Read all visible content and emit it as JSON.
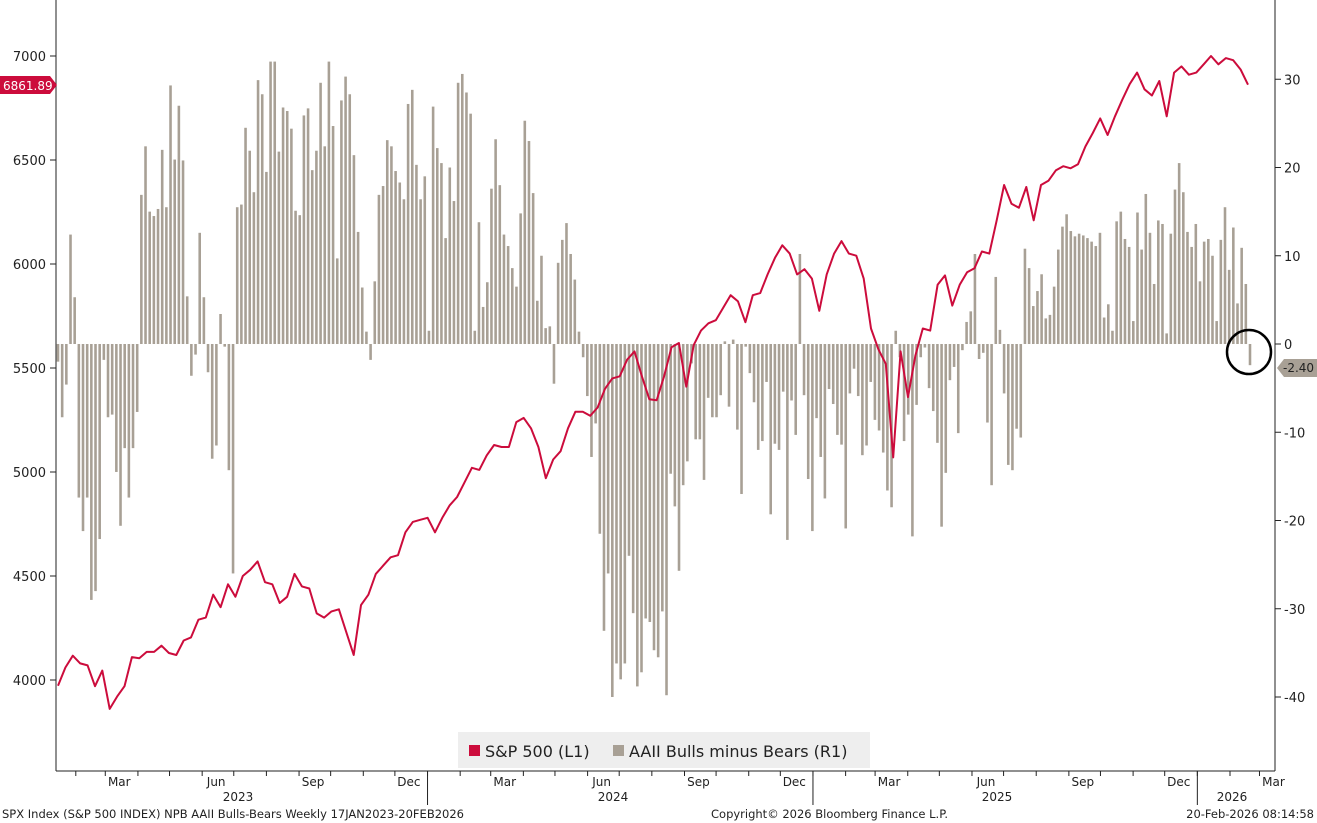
{
  "colors": {
    "spx": "#cc0c3c",
    "aaii": "#a8a095",
    "axis": "#222222",
    "badge_aaii": "#a8a095"
  },
  "legend": {
    "spx_label": "S&P 500 (L1)",
    "aaii_label": "AAII Bulls minus Bears (R1)"
  },
  "current": {
    "spx_value": "6861.89",
    "aaii_value": "-2.40"
  },
  "footer": {
    "left": "SPX Index (S&P 500 INDEX) NPB AAII Bulls-Bears Weekly 17JAN2023-20FEB2026",
    "center": "Copyright© 2026 Bloomberg Finance L.P.",
    "right": "20-Feb-2026 08:14:58"
  },
  "chart_data": {
    "type": "line+bar",
    "title": "",
    "x_range": [
      "2023-01-17",
      "2026-02-20"
    ],
    "month_ticks": [
      "Mar",
      "Jun",
      "Sep",
      "Dec",
      "Mar",
      "Jun",
      "Sep",
      "Dec",
      "Mar",
      "Jun",
      "Sep",
      "Dec",
      "Mar"
    ],
    "year_ticks": [
      "2023",
      "2024",
      "2025",
      "2026"
    ],
    "left_axis": {
      "ylim": [
        3700,
        7240
      ],
      "ticks": [
        4000,
        4500,
        5000,
        5500,
        6000,
        6500,
        7000
      ]
    },
    "right_axis": {
      "ylim": [
        -48,
        39
      ],
      "ticks": [
        -40,
        -30,
        -20,
        -10,
        0,
        10,
        20,
        30
      ]
    },
    "series": [
      {
        "name": "S&P 500 (L1)",
        "kind": "line",
        "axis": "left",
        "values": [
          3972,
          4060,
          4117,
          4080,
          4070,
          3970,
          4045,
          3861,
          3920,
          3970,
          4110,
          4105,
          4135,
          4135,
          4165,
          4130,
          4120,
          4190,
          4205,
          4290,
          4300,
          4410,
          4350,
          4460,
          4400,
          4500,
          4530,
          4570,
          4470,
          4460,
          4370,
          4400,
          4510,
          4450,
          4440,
          4320,
          4300,
          4330,
          4340,
          4230,
          4120,
          4360,
          4410,
          4510,
          4550,
          4590,
          4600,
          4710,
          4760,
          4770,
          4780,
          4710,
          4780,
          4840,
          4880,
          4950,
          5020,
          5010,
          5080,
          5130,
          5120,
          5120,
          5240,
          5260,
          5210,
          5120,
          4970,
          5060,
          5100,
          5210,
          5290,
          5290,
          5270,
          5310,
          5400,
          5450,
          5460,
          5540,
          5580,
          5460,
          5350,
          5345,
          5460,
          5600,
          5620,
          5410,
          5610,
          5680,
          5715,
          5730,
          5790,
          5850,
          5820,
          5720,
          5850,
          5860,
          5950,
          6030,
          6090,
          6050,
          5950,
          5975,
          5930,
          5775,
          5950,
          6050,
          6110,
          6050,
          6040,
          5930,
          5690,
          5590,
          5520,
          5070,
          5580,
          5360,
          5560,
          5690,
          5680,
          5900,
          5945,
          5800,
          5900,
          5960,
          5980,
          6060,
          6050,
          6210,
          6380,
          6290,
          6270,
          6370,
          6210,
          6380,
          6400,
          6450,
          6470,
          6460,
          6480,
          6565,
          6630,
          6700,
          6620,
          6710,
          6790,
          6865,
          6920,
          6840,
          6810,
          6880,
          6710,
          6920,
          6950,
          6910,
          6920,
          6960,
          7000,
          6960,
          6990,
          6980,
          6935,
          6862
        ]
      },
      {
        "name": "AAII Bulls minus Bears (R1)",
        "kind": "bar",
        "axis": "right",
        "values": [
          -2.0,
          -8.3,
          -4.6,
          12.4,
          5.3,
          -17.4,
          -21.2,
          -17.4,
          -29.0,
          -28.0,
          -22.1,
          -1.8,
          -8.3,
          -8.0,
          -14.5,
          -20.6,
          -11.8,
          -17.4,
          -11.8,
          -7.7,
          16.9,
          22.4,
          15.0,
          14.5,
          15.3,
          22.0,
          15.5,
          29.3,
          20.9,
          27.0,
          20.8,
          5.4,
          -3.6,
          -1.2,
          12.6,
          5.3,
          -3.2,
          -13.0,
          -11.5,
          3.4,
          -0.3,
          -14.3,
          -26.0,
          15.5,
          15.8,
          24.5,
          21.9,
          17.2,
          29.9,
          28.3,
          19.5,
          32.0,
          32.0,
          21.8,
          26.8,
          26.4,
          24.4,
          15.1,
          14.6,
          25.9,
          26.7,
          19.7,
          21.9,
          29.6,
          22.4,
          32.0,
          24.7,
          9.7,
          27.6,
          30.3,
          28.3,
          21.4,
          12.7,
          6.4,
          1.4,
          -1.8,
          7.1,
          16.9,
          17.9,
          23.1,
          22.4,
          19.6,
          18.3,
          16.4,
          27.2,
          28.8,
          20.3,
          16.4,
          19.0,
          1.5,
          26.9,
          22.2,
          20.5,
          12.0,
          20.0,
          16.2,
          29.6,
          30.6,
          28.5,
          26.1,
          1.5,
          13.8,
          4.2,
          7.0,
          17.6,
          23.2,
          18.0,
          12.4,
          11.1,
          8.6,
          6.5,
          14.8,
          25.3,
          23.0,
          17.1,
          4.9,
          10.0,
          1.8,
          2.0,
          -4.5,
          9.2,
          11.8,
          13.7,
          10.2,
          7.3,
          1.4,
          -1.5,
          -5.9,
          -12.8,
          -9.0,
          -21.5,
          -32.5,
          -26.0,
          -40.0,
          -36.2,
          -38.0,
          -36.2,
          -24.0,
          -30.5,
          -38.8,
          -37.2,
          -31.1,
          -31.5,
          -34.7,
          -35.5,
          -30.3,
          -39.8,
          -14.7,
          -18.4,
          -25.7,
          -16.0,
          -13.3,
          -2.2,
          -10.8,
          -10.8,
          -15.4,
          -6.1,
          -8.3,
          -8.3,
          -5.8,
          0.3,
          -7.1,
          0.5,
          -9.7,
          -17.0,
          -0.3,
          -3.3,
          -6.6,
          -12.0,
          -11.0,
          -4.3,
          -19.3,
          -11.3,
          -12.0,
          -5.4,
          -22.2,
          -6.4,
          -10.3,
          10.2,
          -5.8,
          -15.3,
          -21.2,
          -8.4,
          -12.8,
          -17.5,
          -5.1,
          -6.8,
          -10.3,
          -11.4,
          -20.9,
          -5.6,
          -2.8,
          -5.9,
          -12.6,
          -11.5,
          -4.3,
          -8.6,
          -9.8,
          -12.3,
          -16.6,
          -18.5,
          1.5,
          -1.5,
          -11.0,
          -8.0,
          -21.8,
          -6.9,
          -1.5,
          -0.4,
          -5.0,
          -7.6,
          -11.2,
          -20.7,
          -14.6,
          -4.1,
          -2.6,
          -10.1,
          -0.7,
          2.5,
          3.7,
          10.2,
          -1.7,
          -1.0,
          -8.9,
          -16.0,
          7.6,
          1.6,
          -5.6,
          -13.7,
          -14.3,
          -9.6,
          -10.6,
          10.8,
          8.6,
          4.3,
          6.0,
          7.9,
          2.9,
          3.3,
          6.5,
          10.7,
          13.3,
          14.7,
          12.8,
          12.2,
          12.5,
          12.3,
          12.0,
          11.6,
          11.1,
          12.6,
          3.0,
          4.5,
          1.5,
          13.9,
          15.0,
          11.9,
          11.0,
          2.6,
          14.9,
          10.7,
          17.0,
          12.6,
          6.8,
          14.0,
          13.6,
          1.2,
          12.5,
          17.5,
          20.5,
          17.2,
          12.7,
          11.0,
          13.6,
          7.1,
          11.6,
          11.9,
          10.0,
          2.6,
          11.8,
          15.5,
          8.4,
          13.2,
          4.6,
          10.9,
          6.8,
          -2.4
        ]
      }
    ]
  }
}
